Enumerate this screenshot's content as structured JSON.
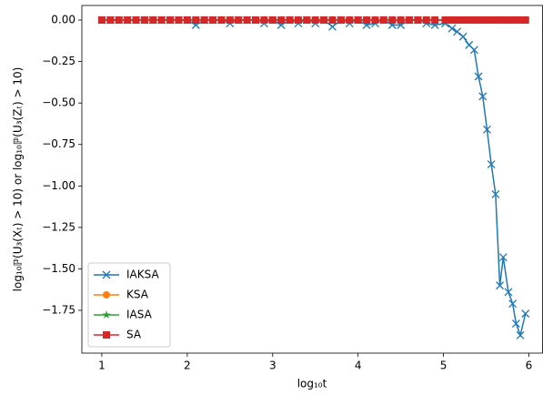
{
  "chart_data": {
    "type": "line",
    "xlabel": "log₁₀t",
    "ylabel": "log₁₀ℙ(U₃(Xₜ) > 10) or log₁₀ℙ(U₃(Zₜ) > 10)",
    "x": [
      1,
      1.1,
      1.2,
      1.3,
      1.4,
      1.5,
      1.6,
      1.7,
      1.8,
      1.9,
      2,
      2.1,
      2.2,
      2.3,
      2.4,
      2.5,
      2.6,
      2.7,
      2.8,
      2.9,
      3,
      3.1,
      3.2,
      3.3,
      3.4,
      3.5,
      3.6,
      3.7,
      3.8,
      3.9,
      4,
      4.1,
      4.2,
      4.3,
      4.4,
      4.5,
      4.6,
      4.7,
      4.8,
      4.9,
      5.02,
      5.1,
      5.16,
      5.23,
      5.3,
      5.36,
      5.41,
      5.46,
      5.51,
      5.56,
      5.61,
      5.66,
      5.7,
      5.76,
      5.81,
      5.85,
      5.9,
      5.96
    ],
    "series": [
      {
        "name": "IAKSA",
        "color": "#1f77b4",
        "marker": "x",
        "values": [
          0,
          0,
          0,
          0,
          0,
          0,
          0,
          0,
          0,
          0,
          0,
          -0.03,
          0,
          0,
          0,
          -0.02,
          0,
          0,
          0,
          -0.02,
          0,
          -0.03,
          0,
          -0.02,
          0,
          -0.02,
          0,
          -0.04,
          0,
          -0.02,
          0,
          -0.03,
          -0.02,
          0,
          -0.03,
          -0.03,
          0,
          0,
          -0.02,
          -0.03,
          -0.02,
          -0.05,
          -0.07,
          -0.1,
          -0.15,
          -0.18,
          -0.34,
          -0.46,
          -0.66,
          -0.87,
          -1.05,
          -1.6,
          -1.43,
          -1.64,
          -1.71,
          -1.83,
          -1.9,
          -1.77
        ]
      },
      {
        "name": "KSA",
        "color": "#ff7f0e",
        "marker": "o",
        "values": [
          0,
          0,
          0,
          0,
          0,
          0,
          0,
          0,
          0,
          0,
          0,
          0,
          0,
          0,
          0,
          0,
          0,
          0,
          0,
          0,
          0,
          0,
          0,
          0,
          0,
          0,
          0,
          0,
          0,
          0,
          0,
          0,
          0,
          0,
          0,
          0,
          0,
          0,
          0,
          0,
          0,
          0,
          0,
          0,
          0,
          0,
          0,
          0,
          0,
          0,
          0,
          0,
          0,
          0,
          0,
          0,
          0,
          0
        ]
      },
      {
        "name": "IASA",
        "color": "#2ca02c",
        "marker": "*",
        "values": [
          0,
          0,
          0,
          0,
          0,
          0,
          0,
          0,
          0,
          0,
          0,
          0,
          0,
          0,
          0,
          0,
          0,
          0,
          0,
          0,
          0,
          0,
          0,
          0,
          0,
          0,
          0,
          0,
          0,
          0,
          0,
          0,
          0,
          0,
          0,
          0,
          0,
          0,
          0,
          0,
          0,
          0,
          0,
          0,
          0,
          0,
          0,
          0,
          0,
          0,
          0,
          0,
          0,
          0,
          0,
          0,
          0,
          0
        ]
      },
      {
        "name": "SA",
        "color": "#d62728",
        "marker": "s",
        "values": [
          0,
          0,
          0,
          0,
          0,
          0,
          0,
          0,
          0,
          0,
          0,
          0,
          0,
          0,
          0,
          0,
          0,
          0,
          0,
          0,
          0,
          0,
          0,
          0,
          0,
          0,
          0,
          0,
          0,
          0,
          0,
          0,
          0,
          0,
          0,
          0,
          0,
          0,
          0,
          0,
          0,
          0,
          0,
          0,
          0,
          0,
          0,
          0,
          0,
          0,
          0,
          0,
          0,
          0,
          0,
          0,
          0,
          0
        ]
      }
    ],
    "xlim": [
      0.766,
      6.16
    ],
    "ylim": [
      -2.008,
      0.088
    ],
    "xticks": [
      1,
      2,
      3,
      4,
      5,
      6
    ],
    "yticks": [
      {
        "value": 0,
        "label": "0.00"
      },
      {
        "value": -0.25,
        "label": "−0.25"
      },
      {
        "value": -0.5,
        "label": "−0.50"
      },
      {
        "value": -0.75,
        "label": "−0.75"
      },
      {
        "value": -1,
        "label": "−1.00"
      },
      {
        "value": -1.25,
        "label": "−1.25"
      },
      {
        "value": -1.5,
        "label": "−1.50"
      },
      {
        "value": -1.75,
        "label": "−1.75"
      }
    ],
    "legend": "lower left"
  }
}
